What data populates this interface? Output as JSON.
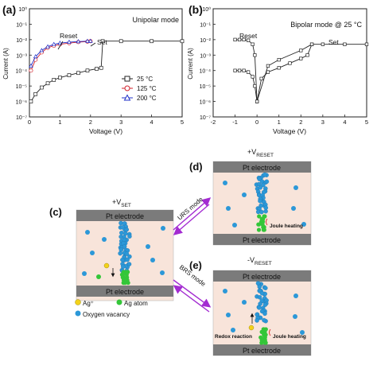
{
  "panels": {
    "a": {
      "label": "(a)",
      "mode": "Unipolar mode",
      "ylabel": "Current (A)",
      "xlabel": "Voltage (V)",
      "annot_reset": "Reset",
      "annot_set": "Set",
      "yticks": [
        "10⁰",
        "10⁻¹",
        "10⁻²",
        "10⁻³",
        "10⁻⁴",
        "10⁻⁵",
        "10⁻⁶",
        "10⁻⁷"
      ],
      "xticks": [
        "0",
        "1",
        "2",
        "3",
        "4",
        "5"
      ],
      "legend": [
        "25 °C",
        "125 °C",
        "200 °C"
      ]
    },
    "b": {
      "label": "(b)",
      "mode": "Bipolar mode @ 25 °C",
      "ylabel": "Current (A)",
      "xlabel": "Voltage (V)",
      "annot_reset": "Reset",
      "annot_set": "Set",
      "yticks": [
        "10⁰",
        "10⁻¹",
        "10⁻²",
        "10⁻³",
        "10⁻⁴",
        "10⁻⁵",
        "10⁻⁶",
        "10⁻⁷"
      ],
      "xticks": [
        "-2",
        "-1",
        "0",
        "1",
        "2",
        "3",
        "4",
        "5"
      ]
    },
    "c": {
      "label": "(c)",
      "vset": "+V",
      "vset_sub": "SET",
      "top_electrode": "Pt electrode",
      "bottom_electrode": "Pt electrode",
      "legend_ag_ion": "Ag⁺",
      "legend_ag_atom": "Ag atom",
      "legend_vacancy": "Oxygen vacancy"
    },
    "d": {
      "label": "(d)",
      "vreset": "+V",
      "vreset_sub": "RESET",
      "top_electrode": "Pt electrode",
      "bottom_electrode": "Pt electrode",
      "joule": "Joule heating"
    },
    "e": {
      "label": "(e)",
      "vreset": "-V",
      "vreset_sub": "RESET",
      "top_electrode": "Pt electrode",
      "bottom_electrode": "Pt electrode",
      "joule": "Joule heating",
      "redox": "Redox reaction"
    },
    "arrows": {
      "urs": "URS mode",
      "brs": "BRS mode"
    }
  },
  "colors": {
    "curve_25": "#222222",
    "curve_125": "#d11f2a",
    "curve_200": "#2031c8",
    "electrode": "#7b7b7b",
    "oxide": "#f8e4da",
    "vacancy": "#2c98d8",
    "ag_atom": "#34c639",
    "ag_ion": "#f3d21a",
    "mode_arrow": "#a32bd1",
    "joule_text": "#d8262c"
  },
  "chart_data": [
    {
      "type": "line",
      "title": "Unipolar mode",
      "xlabel": "Voltage (V)",
      "ylabel": "Current (A)",
      "xlim": [
        0,
        5
      ],
      "ylim": [
        1e-07,
        1
      ],
      "yscale": "log",
      "series": [
        {
          "name": "25 °C",
          "x": [
            0.05,
            0.2,
            0.4,
            0.6,
            0.8,
            1.0,
            1.3,
            1.6,
            1.9,
            2.2,
            2.35,
            2.4,
            3.0,
            4.0,
            5.0
          ],
          "y": [
            1e-06,
            3e-06,
            8e-06,
            1.5e-05,
            2.5e-05,
            3.5e-05,
            5e-05,
            7e-05,
            0.0001,
            0.00013,
            0.00015,
            0.008,
            0.008,
            0.008,
            0.008
          ]
        },
        {
          "name": "125 °C",
          "x": [
            0.05,
            0.2,
            0.4,
            0.6,
            0.8,
            1.0,
            1.3,
            1.6,
            1.9,
            2.0
          ],
          "y": [
            0.0001,
            0.0005,
            0.0015,
            0.003,
            0.004,
            0.005,
            0.006,
            0.007,
            0.0075,
            0.008
          ]
        },
        {
          "name": "200 °C",
          "x": [
            0.05,
            0.2,
            0.4,
            0.6,
            0.8,
            1.0,
            1.3,
            1.6,
            1.9,
            2.0
          ],
          "y": [
            0.0002,
            0.0008,
            0.002,
            0.0035,
            0.005,
            0.006,
            0.007,
            0.0075,
            0.008,
            0.008
          ]
        }
      ]
    },
    {
      "type": "line",
      "title": "Bipolar mode @ 25 °C",
      "xlabel": "Voltage (V)",
      "ylabel": "Current (A)",
      "xlim": [
        -2,
        5
      ],
      "ylim": [
        1e-07,
        1
      ],
      "yscale": "log",
      "series": [
        {
          "name": "",
          "x": [
            -1.0,
            -0.8,
            -0.6,
            -0.4,
            -0.2,
            -0.1,
            0.0,
            0.2,
            0.5,
            1.0,
            1.5,
            2.0,
            2.3,
            2.5,
            3.0,
            4.0,
            5.0
          ],
          "y": [
            0.01,
            0.01,
            0.01,
            0.009,
            0.005,
            0.001,
            1e-06,
            3e-05,
            8e-05,
            0.00015,
            0.0003,
            0.0006,
            0.001,
            0.005,
            0.005,
            0.005,
            0.005
          ]
        },
        {
          "name": "",
          "x": [
            -1.0,
            -0.8,
            -0.6,
            -0.4,
            -0.2,
            -0.1,
            0.0,
            0.5,
            1.0,
            2.0,
            2.5
          ],
          "y": [
            0.0001,
            0.0001,
            0.0001,
            8e-05,
            4e-05,
            1e-05,
            1e-06,
            0.0002,
            0.0005,
            0.002,
            0.005
          ]
        }
      ]
    }
  ]
}
